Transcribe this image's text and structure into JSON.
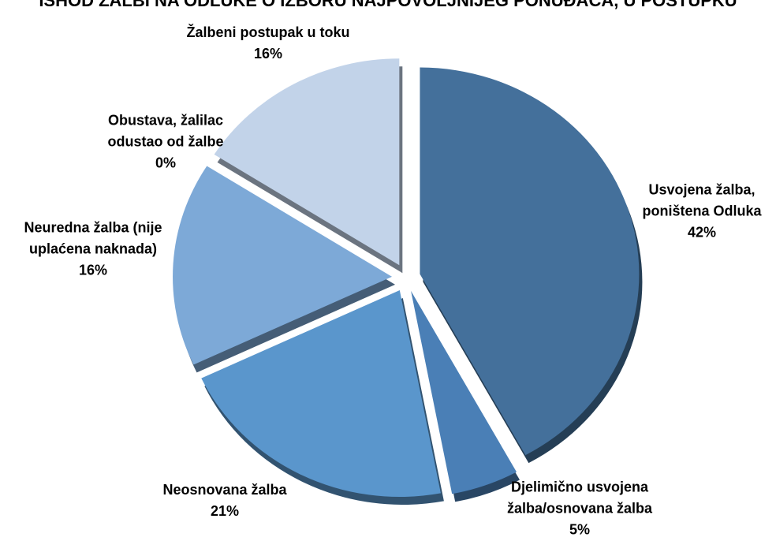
{
  "chart_data": {
    "type": "pie",
    "title": "ISHOD ŽALBI NA ODLUKE O IZBORU NAJPOVOLJNIJEG PONUĐAČA, U POSTUPKU",
    "categories": [
      "Usvojena žalba, poništena Odluka",
      "Djelimično usvojena žalba/osnovana žalba",
      "Neosnovana žalba",
      "Neuredna žalba (nije uplaćena naknada)",
      "Obustava, žalilac odustao od žalbe",
      "Žalbeni postupak u toku"
    ],
    "values": [
      42,
      5,
      21,
      16,
      0,
      16
    ],
    "value_labels": [
      "42%",
      "5%",
      "21%",
      "16%",
      "0%",
      "16%"
    ],
    "colors": [
      "#44709b",
      "#4a7fb6",
      "#5a96cc",
      "#7da9d7",
      "#9dbde2",
      "#c2d3e9"
    ]
  }
}
